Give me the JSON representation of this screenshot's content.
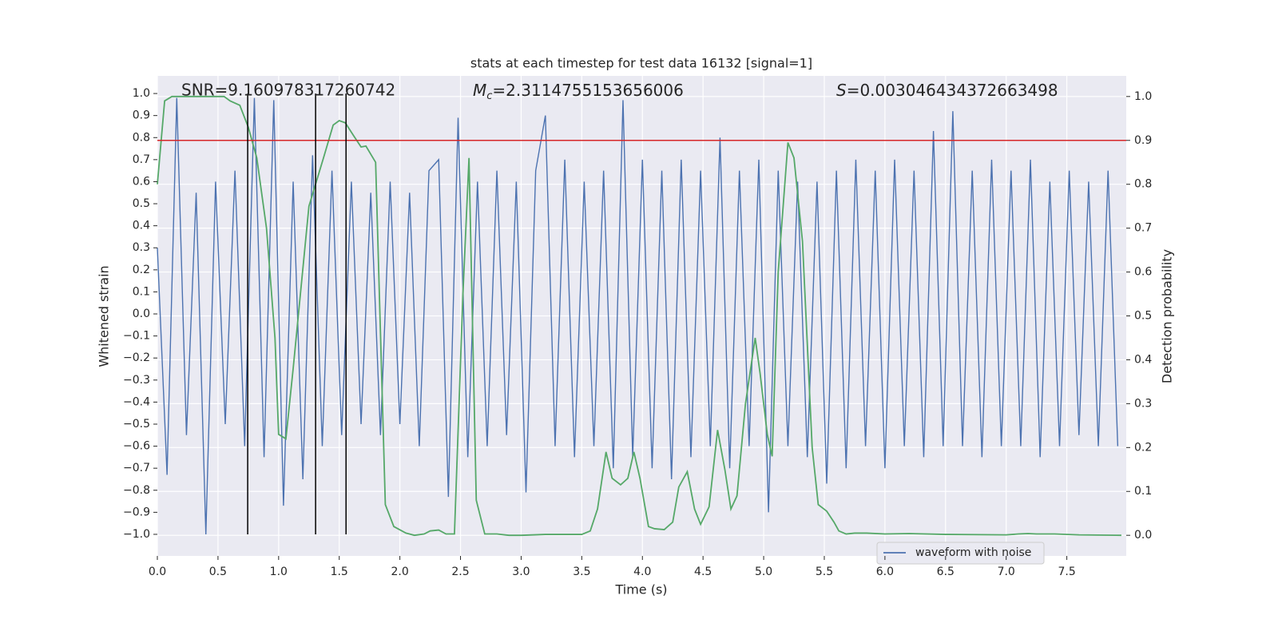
{
  "chart_data": {
    "type": "line",
    "title": "stats at each timestep for test data 16132 [signal=1]",
    "xlabel": "Time (s)",
    "ylabel": "Whitened strain",
    "y2label": "Detection probability",
    "annotations": [
      {
        "text": "SNR=9.160978317260742"
      },
      {
        "symbol": "M",
        "subscript": "c",
        "text": "=2.3114755153656006"
      },
      {
        "symbol": "S",
        "text": "=0.003046434372663498"
      }
    ],
    "xlim": [
      0,
      7.99
    ],
    "ylim": [
      -1.098,
      1.08
    ],
    "y2lim": [
      -0.047,
      1.047
    ],
    "xticks": [
      {
        "value": 0,
        "label": "0.0"
      },
      {
        "value": 0.5,
        "label": "0.5"
      },
      {
        "value": 1,
        "label": "1.0"
      },
      {
        "value": 1.5,
        "label": "1.5"
      },
      {
        "value": 2,
        "label": "2.0"
      },
      {
        "value": 2.5,
        "label": "2.5"
      },
      {
        "value": 3,
        "label": "3.0"
      },
      {
        "value": 3.5,
        "label": "3.5"
      },
      {
        "value": 4,
        "label": "4.0"
      },
      {
        "value": 4.5,
        "label": "4.5"
      },
      {
        "value": 5,
        "label": "5.0"
      },
      {
        "value": 5.5,
        "label": "5.5"
      },
      {
        "value": 6,
        "label": "6.0"
      },
      {
        "value": 6.5,
        "label": "6.5"
      },
      {
        "value": 7,
        "label": "7.0"
      },
      {
        "value": 7.5,
        "label": "7.5"
      }
    ],
    "yticks": [
      {
        "value": 1,
        "label": "1.0"
      },
      {
        "value": 0.9,
        "label": "0.9"
      },
      {
        "value": 0.8,
        "label": "0.8"
      },
      {
        "value": 0.7,
        "label": "0.7"
      },
      {
        "value": 0.6,
        "label": "0.6"
      },
      {
        "value": 0.5,
        "label": "0.5"
      },
      {
        "value": 0.4,
        "label": "0.4"
      },
      {
        "value": 0.3,
        "label": "0.3"
      },
      {
        "value": 0.2,
        "label": "0.2"
      },
      {
        "value": 0.1,
        "label": "0.1"
      },
      {
        "value": 0,
        "label": "0.0"
      },
      {
        "value": -0.1,
        "label": "−0.1"
      },
      {
        "value": -0.2,
        "label": "−0.2"
      },
      {
        "value": -0.3,
        "label": "−0.3"
      },
      {
        "value": -0.4,
        "label": "−0.4"
      },
      {
        "value": -0.5,
        "label": "−0.5"
      },
      {
        "value": -0.6,
        "label": "−0.6"
      },
      {
        "value": -0.7,
        "label": "−0.7"
      },
      {
        "value": -0.8,
        "label": "−0.8"
      },
      {
        "value": -0.9,
        "label": "−0.9"
      },
      {
        "value": -1,
        "label": "−1.0"
      }
    ],
    "y2ticks": [
      {
        "value": 0,
        "label": "0.0"
      },
      {
        "value": 0.1,
        "label": "0.1"
      },
      {
        "value": 0.2,
        "label": "0.2"
      },
      {
        "value": 0.3,
        "label": "0.3"
      },
      {
        "value": 0.4,
        "label": "0.4"
      },
      {
        "value": 0.5,
        "label": "0.5"
      },
      {
        "value": 0.6,
        "label": "0.6"
      },
      {
        "value": 0.7,
        "label": "0.7"
      },
      {
        "value": 0.8,
        "label": "0.8"
      },
      {
        "value": 0.9,
        "label": "0.9"
      },
      {
        "value": 1,
        "label": "1.0"
      }
    ],
    "grid": true,
    "legend": "lower right",
    "series": [
      {
        "name": "waveform with noise",
        "color": "#4c72b0",
        "x": [
          0,
          0.08,
          0.16,
          0.24,
          0.32,
          0.4,
          0.48,
          0.56,
          0.64,
          0.72,
          0.8,
          0.88,
          0.96,
          1.04,
          1.12,
          1.2,
          1.28,
          1.36,
          1.44,
          1.52,
          1.6,
          1.68,
          1.76,
          1.84,
          1.92,
          2,
          2.08,
          2.16,
          2.24,
          2.32,
          2.4,
          2.48,
          2.56,
          2.64,
          2.72,
          2.8,
          2.88,
          2.96,
          3.04,
          3.12,
          3.2,
          3.28,
          3.36,
          3.44,
          3.52,
          3.6,
          3.68,
          3.76,
          3.84,
          3.92,
          4,
          4.08,
          4.16,
          4.24,
          4.32,
          4.4,
          4.48,
          4.56,
          4.64,
          4.72,
          4.8,
          4.88,
          4.96,
          5.04,
          5.12,
          5.2,
          5.28,
          5.36,
          5.44,
          5.52,
          5.6,
          5.68,
          5.76,
          5.84,
          5.92,
          6,
          6.08,
          6.16,
          6.24,
          6.32,
          6.4,
          6.48,
          6.56,
          6.64,
          6.72,
          6.8,
          6.88,
          6.96,
          7.04,
          7.12,
          7.2,
          7.28,
          7.36,
          7.44,
          7.52,
          7.6,
          7.68,
          7.76,
          7.84,
          7.92
        ],
        "values": [
          0.3,
          -0.73,
          0.98,
          -0.55,
          0.55,
          -1.0,
          0.6,
          -0.5,
          0.65,
          -0.6,
          0.98,
          -0.65,
          0.97,
          -0.87,
          0.6,
          -0.75,
          0.72,
          -0.6,
          0.65,
          -0.55,
          0.6,
          -0.5,
          0.55,
          -0.55,
          0.6,
          -0.5,
          0.55,
          -0.6,
          0.65,
          0.7,
          -0.83,
          0.89,
          -0.65,
          0.6,
          -0.6,
          0.65,
          -0.55,
          0.6,
          -0.81,
          0.65,
          0.9,
          -0.6,
          0.7,
          -0.65,
          0.6,
          -0.6,
          0.65,
          -0.7,
          0.97,
          -0.65,
          0.7,
          -0.7,
          0.65,
          -0.75,
          0.7,
          -0.65,
          0.65,
          -0.6,
          0.8,
          -0.7,
          0.65,
          -0.6,
          0.7,
          -0.9,
          0.65,
          -0.6,
          0.6,
          -0.65,
          0.6,
          -0.77,
          0.65,
          -0.7,
          0.7,
          -0.6,
          0.65,
          -0.7,
          0.7,
          -0.6,
          0.65,
          -0.65,
          0.83,
          -0.6,
          0.92,
          -0.6,
          0.65,
          -0.65,
          0.7,
          -0.6,
          0.65,
          -0.6,
          0.7,
          -0.65,
          0.6,
          -0.6,
          0.65,
          -0.55,
          0.6,
          -0.6,
          0.65,
          -0.6
        ]
      },
      {
        "color": "#55a868",
        "axis": "y2",
        "x": [
          0,
          0.06,
          0.12,
          0.55,
          0.6,
          0.68,
          0.75,
          0.82,
          0.9,
          0.97,
          1.0,
          1.06,
          1.12,
          1.25,
          1.37,
          1.45,
          1.5,
          1.55,
          1.62,
          1.68,
          1.72,
          1.8,
          1.88,
          1.95,
          2.05,
          2.12,
          2.2,
          2.25,
          2.32,
          2.38,
          2.45,
          2.52,
          2.57,
          2.63,
          2.7,
          2.8,
          2.9,
          3.0,
          3.2,
          3.5,
          3.57,
          3.63,
          3.7,
          3.75,
          3.82,
          3.88,
          3.93,
          3.98,
          4.05,
          4.1,
          4.18,
          4.25,
          4.3,
          4.37,
          4.43,
          4.48,
          4.55,
          4.62,
          4.68,
          4.73,
          4.78,
          4.85,
          4.93,
          4.97,
          5.03,
          5.07,
          5.12,
          5.2,
          5.25,
          5.32,
          5.4,
          5.45,
          5.52,
          5.58,
          5.62,
          5.68,
          5.75,
          5.85,
          6.0,
          6.2,
          6.5,
          7.0,
          7.1,
          7.18,
          7.25,
          7.4,
          7.6,
          7.95
        ],
        "values": [
          0.8,
          0.99,
          1.0,
          1.0,
          0.99,
          0.98,
          0.93,
          0.86,
          0.7,
          0.45,
          0.23,
          0.22,
          0.38,
          0.75,
          0.86,
          0.935,
          0.945,
          0.94,
          0.91,
          0.885,
          0.887,
          0.85,
          0.07,
          0.02,
          0.005,
          0.0,
          0.003,
          0.01,
          0.012,
          0.003,
          0.003,
          0.55,
          0.86,
          0.08,
          0.003,
          0.003,
          0.0,
          0.0,
          0.002,
          0.002,
          0.01,
          0.06,
          0.19,
          0.13,
          0.115,
          0.13,
          0.19,
          0.13,
          0.02,
          0.015,
          0.013,
          0.03,
          0.11,
          0.145,
          0.06,
          0.025,
          0.065,
          0.24,
          0.15,
          0.06,
          0.09,
          0.3,
          0.45,
          0.37,
          0.23,
          0.18,
          0.6,
          0.895,
          0.86,
          0.67,
          0.2,
          0.07,
          0.055,
          0.03,
          0.01,
          0.003,
          0.005,
          0.005,
          0.003,
          0.004,
          0.002,
          0.001,
          0.003,
          0.004,
          0.003,
          0.003,
          0.001,
          0.0
        ]
      }
    ],
    "hline": {
      "y": 0.9,
      "axis": "y2",
      "color": "#d62728"
    },
    "vlines": {
      "x": [
        0.745,
        1.305,
        1.556
      ],
      "ymin": -1.0,
      "ymax": 1.0,
      "color": "#000000"
    }
  }
}
